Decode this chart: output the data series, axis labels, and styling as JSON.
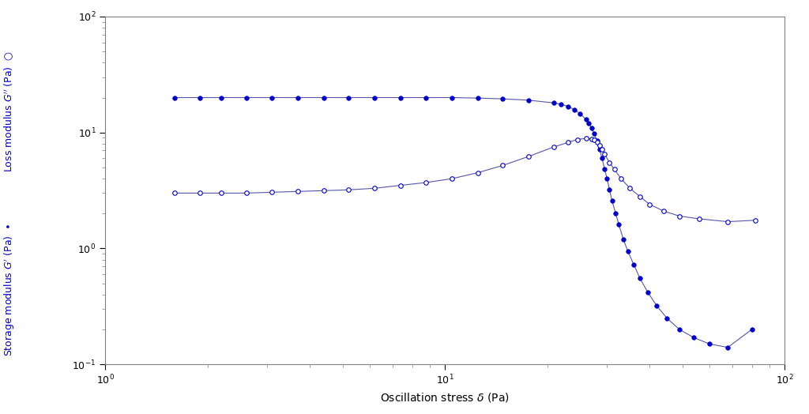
{
  "color": "#0000CC",
  "line_color": "#5555AA",
  "background": "white",
  "xlabel": "Oscillation stress δ (Pa)",
  "xlim": [
    1,
    100
  ],
  "ylim": [
    0.1,
    100
  ],
  "G_prime_x": [
    1.6,
    1.9,
    2.2,
    2.6,
    3.1,
    3.7,
    4.4,
    5.2,
    6.2,
    7.4,
    8.8,
    10.5,
    12.5,
    14.8,
    17.6,
    20.9,
    22.0,
    23.0,
    24.0,
    25.0,
    26.0,
    26.5,
    27.0,
    27.5,
    28.0,
    28.5,
    29.0,
    29.5,
    30.0,
    30.5,
    31.0,
    31.8,
    32.5,
    33.5,
    34.5,
    36.0,
    37.5,
    39.5,
    42.0,
    45.0,
    49.0,
    54.0,
    60.0,
    68.0,
    80.0
  ],
  "G_prime_y": [
    20.0,
    20.0,
    20.0,
    20.0,
    20.0,
    20.0,
    20.0,
    20.0,
    20.0,
    20.0,
    20.0,
    20.0,
    19.8,
    19.5,
    19.0,
    18.0,
    17.5,
    16.8,
    15.8,
    14.5,
    13.0,
    12.0,
    11.0,
    9.8,
    8.5,
    7.2,
    6.0,
    4.8,
    4.0,
    3.2,
    2.6,
    2.0,
    1.6,
    1.2,
    0.95,
    0.72,
    0.55,
    0.42,
    0.32,
    0.25,
    0.2,
    0.17,
    0.15,
    0.14,
    0.2
  ],
  "G_dprime_x": [
    1.6,
    1.9,
    2.2,
    2.6,
    3.1,
    3.7,
    4.4,
    5.2,
    6.2,
    7.4,
    8.8,
    10.5,
    12.5,
    14.8,
    17.6,
    20.9,
    23.0,
    24.5,
    26.0,
    27.0,
    27.5,
    28.0,
    28.5,
    29.0,
    29.5,
    30.5,
    31.5,
    33.0,
    35.0,
    37.5,
    40.0,
    44.0,
    49.0,
    56.0,
    68.0,
    82.0
  ],
  "G_dprime_y": [
    3.0,
    3.0,
    3.0,
    3.0,
    3.05,
    3.1,
    3.15,
    3.2,
    3.3,
    3.5,
    3.7,
    4.0,
    4.5,
    5.2,
    6.2,
    7.5,
    8.2,
    8.7,
    8.9,
    8.8,
    8.6,
    8.3,
    7.8,
    7.2,
    6.5,
    5.5,
    4.8,
    4.0,
    3.3,
    2.8,
    2.4,
    2.1,
    1.9,
    1.8,
    1.7,
    1.75
  ]
}
